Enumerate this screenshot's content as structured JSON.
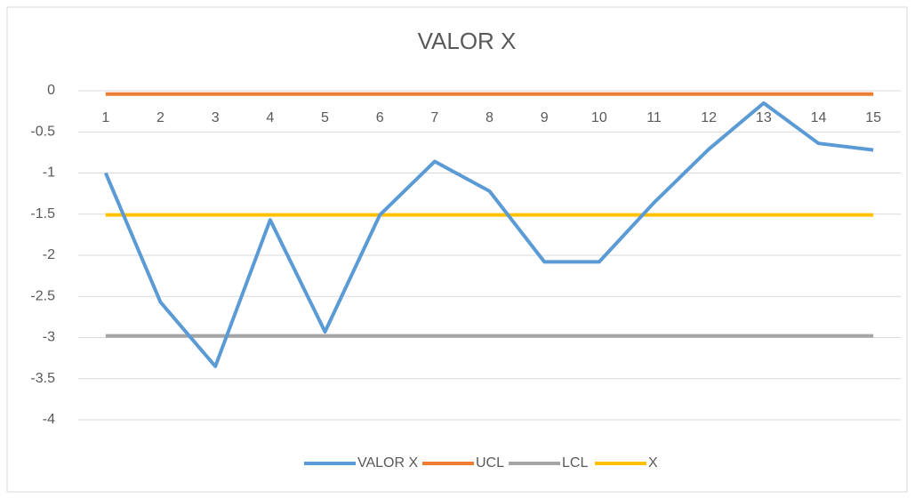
{
  "chart_data": {
    "type": "line",
    "title": "VALOR X",
    "categories": [
      1,
      2,
      3,
      4,
      5,
      6,
      7,
      8,
      9,
      10,
      11,
      12,
      13,
      14,
      15
    ],
    "series": [
      {
        "name": "VALOR X",
        "color": "#5b9bd5",
        "values": [
          -1.0,
          -2.57,
          -3.35,
          -1.57,
          -2.93,
          -1.51,
          -0.86,
          -1.22,
          -2.08,
          -2.08,
          -1.36,
          -0.71,
          -0.15,
          -0.64,
          -0.72
        ]
      },
      {
        "name": "UCL",
        "color": "#ed7d31",
        "values": [
          -0.04,
          -0.04,
          -0.04,
          -0.04,
          -0.04,
          -0.04,
          -0.04,
          -0.04,
          -0.04,
          -0.04,
          -0.04,
          -0.04,
          -0.04,
          -0.04,
          -0.04
        ]
      },
      {
        "name": "LCL",
        "color": "#a5a5a5",
        "values": [
          -2.98,
          -2.98,
          -2.98,
          -2.98,
          -2.98,
          -2.98,
          -2.98,
          -2.98,
          -2.98,
          -2.98,
          -2.98,
          -2.98,
          -2.98,
          -2.98,
          -2.98
        ]
      },
      {
        "name": "X",
        "color": "#ffc000",
        "values": [
          -1.51,
          -1.51,
          -1.51,
          -1.51,
          -1.51,
          -1.51,
          -1.51,
          -1.51,
          -1.51,
          -1.51,
          -1.51,
          -1.51,
          -1.51,
          -1.51,
          -1.51
        ]
      }
    ],
    "ylim": [
      -4,
      0
    ],
    "yticks": [
      0,
      -0.5,
      -1,
      -1.5,
      -2,
      -2.5,
      -3,
      -3.5,
      -4
    ],
    "grid": true,
    "legend": "bottom"
  }
}
